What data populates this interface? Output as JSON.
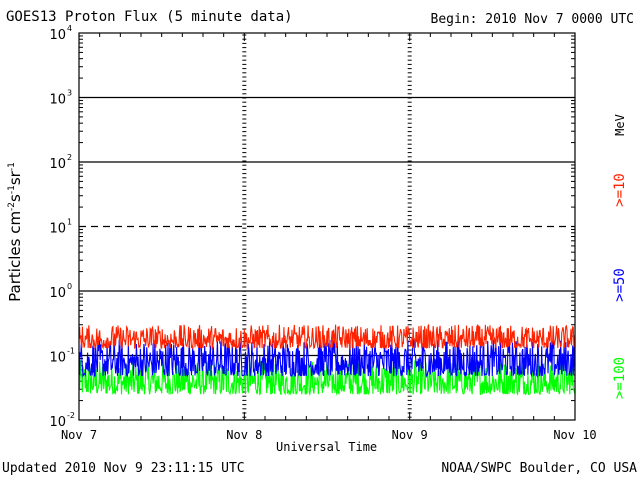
{
  "header": {
    "title": "GOES13 Proton Flux (5 minute data)",
    "begin": "Begin: 2010 Nov 7 0000 UTC"
  },
  "footer": {
    "updated": "Updated 2010 Nov  9 23:11:15 UTC",
    "credit": "NOAA/SWPC Boulder, CO USA"
  },
  "chart_data": {
    "type": "line",
    "title": "GOES13 Proton Flux (5 minute data)",
    "xlabel": "Universal Time",
    "ylabel": "Particles cm-2s-1sr-1",
    "yscale": "log",
    "ylim": [
      0.01,
      10000
    ],
    "xlim_days": [
      0,
      3
    ],
    "xticks": [
      "Nov 7",
      "Nov 8",
      "Nov 9",
      "Nov 10"
    ],
    "yticks": [
      {
        "base": "10",
        "exp": "-2",
        "value": 0.01
      },
      {
        "base": "10",
        "exp": "-1",
        "value": 0.1
      },
      {
        "base": "10",
        "exp": "0",
        "value": 1
      },
      {
        "base": "10",
        "exp": "1",
        "value": 10
      },
      {
        "base": "10",
        "exp": "2",
        "value": 100
      },
      {
        "base": "10",
        "exp": "3",
        "value": 1000
      },
      {
        "base": "10",
        "exp": "4",
        "value": 10000
      }
    ],
    "units_label": "MeV",
    "reference_line": {
      "value": 10,
      "style": "dashed"
    },
    "series": [
      {
        "name": ">=10",
        "color": "#ff2200",
        "low": 0.13,
        "high": 0.3
      },
      {
        "name": ">=50",
        "color": "#0000ff",
        "low": 0.048,
        "high": 0.18
      },
      {
        "name": ">=100",
        "color": "#00ff00",
        "low": 0.025,
        "high": 0.085
      }
    ]
  }
}
